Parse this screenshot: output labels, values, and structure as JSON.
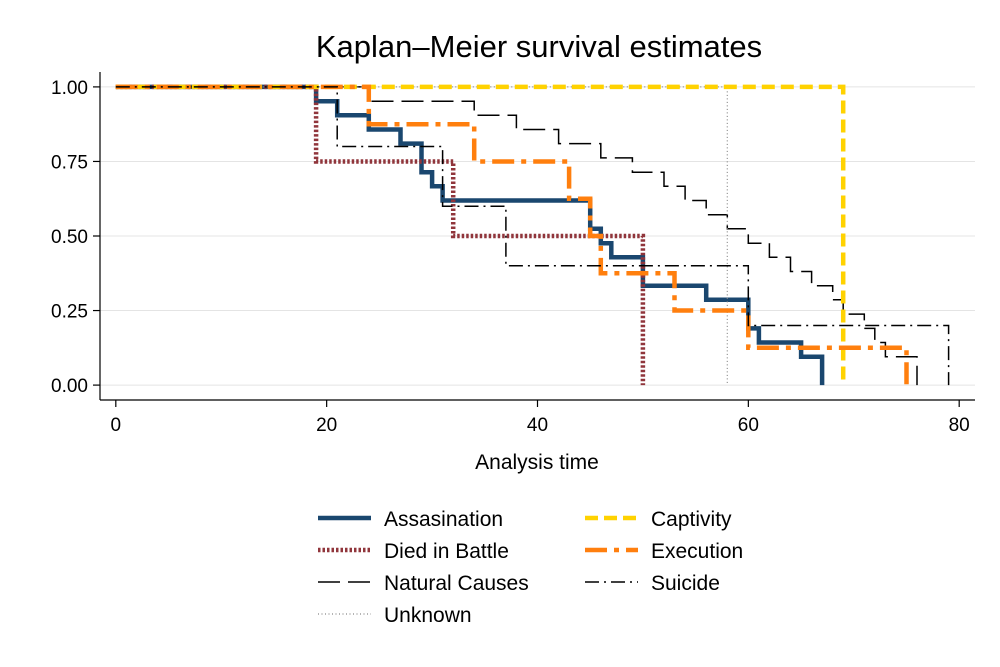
{
  "chart_data": {
    "type": "line",
    "step": true,
    "title": "Kaplan–Meier survival estimates",
    "xlabel": "Analysis time",
    "ylabel": "",
    "xlim": [
      -1.5,
      81.5
    ],
    "ylim": [
      -0.05,
      1.05
    ],
    "xticks": [
      0,
      20,
      40,
      60,
      80
    ],
    "xtick_labels": [
      "0",
      "20",
      "40",
      "60",
      "80"
    ],
    "yticks": [
      0,
      0.25,
      0.5,
      0.75,
      1
    ],
    "ytick_labels": [
      "0.00",
      "0.25",
      "0.50",
      "0.75",
      "1.00"
    ],
    "grid": "horizontal",
    "legend_position": "bottom",
    "series": [
      {
        "name": "Assasination",
        "color": "#1a476f",
        "style": "solid",
        "points": [
          [
            0,
            1
          ],
          [
            19,
            1
          ],
          [
            19,
            0.952
          ],
          [
            21,
            0.952
          ],
          [
            21,
            0.905
          ],
          [
            24,
            0.905
          ],
          [
            24,
            0.857
          ],
          [
            27,
            0.857
          ],
          [
            27,
            0.81
          ],
          [
            29,
            0.81
          ],
          [
            29,
            0.714
          ],
          [
            30,
            0.714
          ],
          [
            30,
            0.667
          ],
          [
            31,
            0.667
          ],
          [
            31,
            0.619
          ],
          [
            45,
            0.619
          ],
          [
            45,
            0.524
          ],
          [
            46,
            0.524
          ],
          [
            46,
            0.476
          ],
          [
            47,
            0.476
          ],
          [
            47,
            0.429
          ],
          [
            50,
            0.429
          ],
          [
            50,
            0.333
          ],
          [
            56,
            0.333
          ],
          [
            56,
            0.286
          ],
          [
            60,
            0.286
          ],
          [
            60,
            0.19
          ],
          [
            61,
            0.19
          ],
          [
            61,
            0.143
          ],
          [
            65,
            0.143
          ],
          [
            65,
            0.095
          ],
          [
            67,
            0.095
          ],
          [
            67,
            0
          ]
        ]
      },
      {
        "name": "Died in Battle",
        "color": "#90353b",
        "style": "dotted",
        "points": [
          [
            0,
            1
          ],
          [
            19,
            1
          ],
          [
            19,
            0.75
          ],
          [
            32,
            0.75
          ],
          [
            32,
            0.5
          ],
          [
            50,
            0.5
          ],
          [
            50,
            0
          ]
        ]
      },
      {
        "name": "Natural Causes",
        "color": "#000000",
        "style": "longdash",
        "points": [
          [
            0,
            1
          ],
          [
            24,
            1
          ],
          [
            24,
            0.952
          ],
          [
            34,
            0.952
          ],
          [
            34,
            0.905
          ],
          [
            38,
            0.905
          ],
          [
            38,
            0.857
          ],
          [
            42,
            0.857
          ],
          [
            42,
            0.81
          ],
          [
            46,
            0.81
          ],
          [
            46,
            0.762
          ],
          [
            49,
            0.762
          ],
          [
            49,
            0.714
          ],
          [
            52,
            0.714
          ],
          [
            52,
            0.667
          ],
          [
            54,
            0.667
          ],
          [
            54,
            0.619
          ],
          [
            56,
            0.619
          ],
          [
            56,
            0.571
          ],
          [
            58,
            0.571
          ],
          [
            58,
            0.524
          ],
          [
            60,
            0.524
          ],
          [
            60,
            0.476
          ],
          [
            62,
            0.476
          ],
          [
            62,
            0.429
          ],
          [
            64,
            0.429
          ],
          [
            64,
            0.381
          ],
          [
            66,
            0.381
          ],
          [
            66,
            0.333
          ],
          [
            68,
            0.333
          ],
          [
            68,
            0.286
          ],
          [
            69,
            0.286
          ],
          [
            69,
            0.238
          ],
          [
            71,
            0.238
          ],
          [
            71,
            0.19
          ],
          [
            72,
            0.19
          ],
          [
            72,
            0.143
          ],
          [
            73,
            0.143
          ],
          [
            73,
            0.095
          ],
          [
            76,
            0.095
          ],
          [
            76,
            0
          ]
        ]
      },
      {
        "name": "Unknown",
        "color": "#888888",
        "style": "fine-dotted",
        "points": [
          [
            0,
            1
          ],
          [
            58,
            1
          ],
          [
            58,
            0
          ]
        ]
      },
      {
        "name": "Captivity",
        "color": "#ffd200",
        "style": "dash",
        "points": [
          [
            0,
            1
          ],
          [
            69,
            1
          ],
          [
            69,
            0
          ]
        ]
      },
      {
        "name": "Execution",
        "color": "#ff7f0e",
        "style": "dashdot-thick",
        "points": [
          [
            0,
            1
          ],
          [
            24,
            1
          ],
          [
            24,
            0.875
          ],
          [
            34,
            0.875
          ],
          [
            34,
            0.75
          ],
          [
            43,
            0.75
          ],
          [
            43,
            0.625
          ],
          [
            45,
            0.625
          ],
          [
            45,
            0.5
          ],
          [
            46,
            0.5
          ],
          [
            46,
            0.375
          ],
          [
            53,
            0.375
          ],
          [
            53,
            0.25
          ],
          [
            60,
            0.25
          ],
          [
            60,
            0.125
          ],
          [
            75,
            0.125
          ],
          [
            75,
            0
          ]
        ]
      },
      {
        "name": "Suicide",
        "color": "#000000",
        "style": "dashdot",
        "points": [
          [
            0,
            1
          ],
          [
            21,
            1
          ],
          [
            21,
            0.8
          ],
          [
            31,
            0.8
          ],
          [
            31,
            0.6
          ],
          [
            37,
            0.6
          ],
          [
            37,
            0.4
          ],
          [
            60,
            0.4
          ],
          [
            60,
            0.2
          ],
          [
            79,
            0.2
          ],
          [
            79,
            0
          ]
        ]
      }
    ]
  }
}
